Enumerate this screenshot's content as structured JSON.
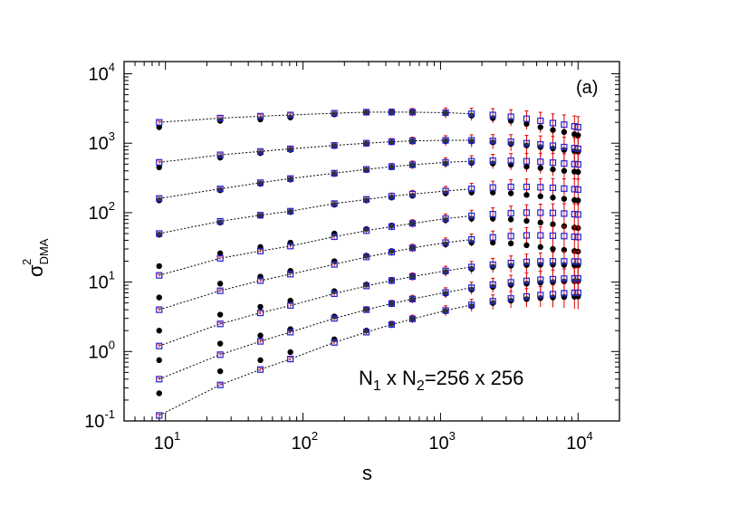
{
  "chart_data": {
    "type": "scatter",
    "panel_label": "(a)",
    "annotation": {
      "base": "N",
      "sub1": "1",
      "mid": " x N",
      "sub2": "2",
      "rest": "=256 x 256"
    },
    "xlabel": "s",
    "ylabel": {
      "base": "σ",
      "sup": "2",
      "sub": "DMA"
    },
    "x_scale": "log",
    "y_scale": "log",
    "xlim": [
      5,
      20000
    ],
    "ylim": [
      0.1,
      15000
    ],
    "x_ticks": [
      {
        "base": "10",
        "exp": "1",
        "value": 10
      },
      {
        "base": "10",
        "exp": "2",
        "value": 100
      },
      {
        "base": "10",
        "exp": "3",
        "value": 1000
      },
      {
        "base": "10",
        "exp": "4",
        "value": 10000
      }
    ],
    "y_ticks": [
      {
        "base": "10",
        "exp": "-1",
        "value": 0.1
      },
      {
        "base": "10",
        "exp": "0",
        "value": 1
      },
      {
        "base": "10",
        "exp": "1",
        "value": 10
      },
      {
        "base": "10",
        "exp": "2",
        "value": 100
      },
      {
        "base": "10",
        "exp": "3",
        "value": 1000
      },
      {
        "base": "10",
        "exp": "4",
        "value": 10000
      }
    ],
    "colors": {
      "open_squares": "#2020d0",
      "filled_circles": "#000000",
      "error_bars": "#e00000",
      "fit_lines": "#000000"
    },
    "series_s": [
      9,
      25,
      49,
      81,
      169,
      289,
      441,
      625,
      1089,
      1681,
      2401,
      3249,
      4225,
      5329,
      6561,
      7921,
      9409,
      10000
    ],
    "curves": [
      {
        "y_open": [
          2000,
          2300,
          2450,
          2550,
          2700,
          2800,
          2800,
          2800,
          2750,
          2650,
          2550,
          2400,
          2250,
          2100,
          1950,
          1850,
          1750,
          1700
        ],
        "y_filled": [
          1700,
          2100,
          2200,
          2350,
          2600,
          2750,
          2800,
          2800,
          2700,
          2500,
          2300,
          2100,
          1900,
          1700,
          1550,
          1450,
          1350,
          1300
        ]
      },
      {
        "y_open": [
          530,
          680,
          760,
          830,
          930,
          1000,
          1050,
          1080,
          1100,
          1100,
          1080,
          1050,
          1000,
          960,
          920,
          880,
          850,
          830
        ],
        "y_filled": [
          450,
          620,
          720,
          800,
          910,
          980,
          1030,
          1060,
          1070,
          1060,
          1030,
          980,
          930,
          880,
          840,
          800,
          770,
          750
        ]
      },
      {
        "y_open": [
          160,
          220,
          270,
          310,
          370,
          420,
          460,
          490,
          530,
          550,
          560,
          560,
          550,
          540,
          525,
          510,
          500,
          495
        ],
        "y_filled": [
          150,
          210,
          260,
          300,
          360,
          410,
          450,
          480,
          510,
          520,
          510,
          490,
          460,
          440,
          420,
          400,
          390,
          385
        ]
      },
      {
        "y_open": [
          50,
          75,
          92,
          105,
          135,
          155,
          172,
          185,
          205,
          220,
          230,
          235,
          235,
          232,
          228,
          222,
          218,
          215
        ],
        "y_filled": [
          48,
          72,
          90,
          102,
          130,
          150,
          165,
          175,
          190,
          195,
          195,
          190,
          180,
          172,
          165,
          158,
          152,
          150
        ]
      },
      {
        "y_open": [
          12.5,
          22,
          28,
          33,
          45,
          55,
          63,
          70,
          82,
          90,
          95,
          98,
          100,
          100,
          99,
          97,
          95,
          94
        ],
        "y_filled": [
          17,
          26,
          32,
          37,
          50,
          58,
          65,
          70,
          78,
          82,
          82,
          80,
          76,
          72,
          68,
          64,
          61,
          60
        ]
      },
      {
        "y_open": [
          4.0,
          7.5,
          10.5,
          13,
          18,
          23,
          27,
          31,
          37,
          41,
          44,
          46,
          47,
          47,
          46.5,
          46,
          45,
          44.5
        ],
        "y_filled": [
          6,
          9.5,
          12,
          14.5,
          20,
          24,
          28,
          31,
          35,
          37,
          37,
          36,
          34,
          32,
          30,
          29,
          28,
          27.5
        ]
      },
      {
        "y_open": [
          1.2,
          2.5,
          3.6,
          4.6,
          6.8,
          8.8,
          10.5,
          12,
          14.5,
          16.5,
          17.8,
          18.8,
          19.5,
          19.8,
          19.9,
          19.9,
          19.8,
          19.7
        ],
        "y_filled": [
          2.0,
          3.4,
          4.4,
          5.4,
          7.4,
          9.2,
          10.7,
          12,
          14,
          15.5,
          16.5,
          17.2,
          17.6,
          17.8,
          17.8,
          17.7,
          17.5,
          17.4
        ]
      },
      {
        "y_open": [
          0.4,
          0.9,
          1.4,
          1.9,
          3.0,
          4.0,
          4.9,
          5.7,
          7.1,
          8.3,
          9.2,
          9.9,
          10.4,
          10.8,
          11.0,
          11.2,
          11.3,
          11.3
        ],
        "y_filled": [
          0.75,
          1.3,
          1.7,
          2.1,
          3.2,
          4.1,
          4.9,
          5.6,
          6.8,
          7.8,
          8.5,
          9.1,
          9.5,
          9.8,
          10.0,
          10.2,
          10.3,
          10.3
        ]
      },
      {
        "y_open": [
          0.12,
          0.33,
          0.55,
          0.78,
          1.35,
          1.9,
          2.45,
          2.95,
          3.9,
          4.7,
          5.3,
          5.8,
          6.2,
          6.5,
          6.7,
          6.9,
          7.0,
          7.0
        ],
        "y_filled": [
          0.25,
          0.52,
          0.75,
          0.98,
          1.5,
          2.0,
          2.5,
          2.95,
          3.8,
          4.5,
          5.0,
          5.4,
          5.7,
          5.9,
          6.0,
          6.1,
          6.15,
          6.2
        ]
      }
    ]
  }
}
